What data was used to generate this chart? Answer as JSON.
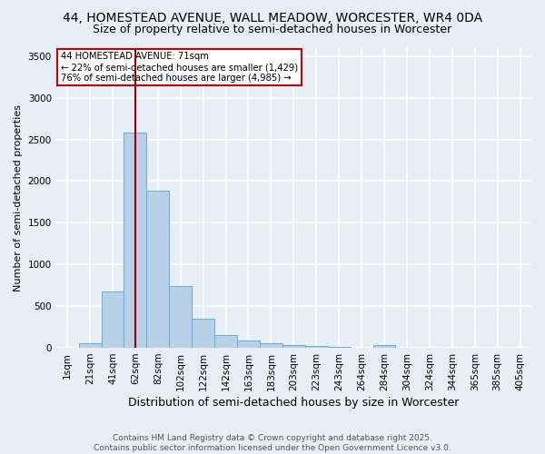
{
  "title_line1": "44, HOMESTEAD AVENUE, WALL MEADOW, WORCESTER, WR4 0DA",
  "title_line2": "Size of property relative to semi-detached houses in Worcester",
  "xlabel": "Distribution of semi-detached houses by size in Worcester",
  "ylabel": "Number of semi-detached properties",
  "annotation_line1": "44 HOMESTEAD AVENUE: 71sqm",
  "annotation_line2": "← 22% of semi-detached houses are smaller (1,429)",
  "annotation_line3": "76% of semi-detached houses are larger (4,985) →",
  "footer_line1": "Contains HM Land Registry data © Crown copyright and database right 2025.",
  "footer_line2": "Contains public sector information licensed under the Open Government Licence v3.0.",
  "bin_labels": [
    "1sqm",
    "21sqm",
    "41sqm",
    "62sqm",
    "82sqm",
    "102sqm",
    "122sqm",
    "142sqm",
    "163sqm",
    "183sqm",
    "203sqm",
    "223sqm",
    "243sqm",
    "264sqm",
    "284sqm",
    "304sqm",
    "324sqm",
    "344sqm",
    "365sqm",
    "385sqm",
    "405sqm"
  ],
  "bin_counts": [
    0,
    55,
    680,
    2580,
    1880,
    745,
    345,
    155,
    85,
    55,
    30,
    20,
    15,
    0,
    30,
    0,
    0,
    0,
    0,
    0,
    0
  ],
  "bar_color": "#b8d0e8",
  "bar_edge_color": "#6aaad4",
  "vline_color": "#990000",
  "vline_bin_index": 3,
  "ylim": [
    0,
    3600
  ],
  "yticks": [
    0,
    500,
    1000,
    1500,
    2000,
    2500,
    3000,
    3500
  ],
  "background_color": "#e8eef5",
  "grid_color": "#ffffff",
  "annotation_box_color": "#ffffff",
  "annotation_box_edge": "#cc0000",
  "title_fontsize": 10,
  "subtitle_fontsize": 9,
  "tick_fontsize": 7.5,
  "ylabel_fontsize": 8,
  "xlabel_fontsize": 9,
  "footer_fontsize": 6.5
}
